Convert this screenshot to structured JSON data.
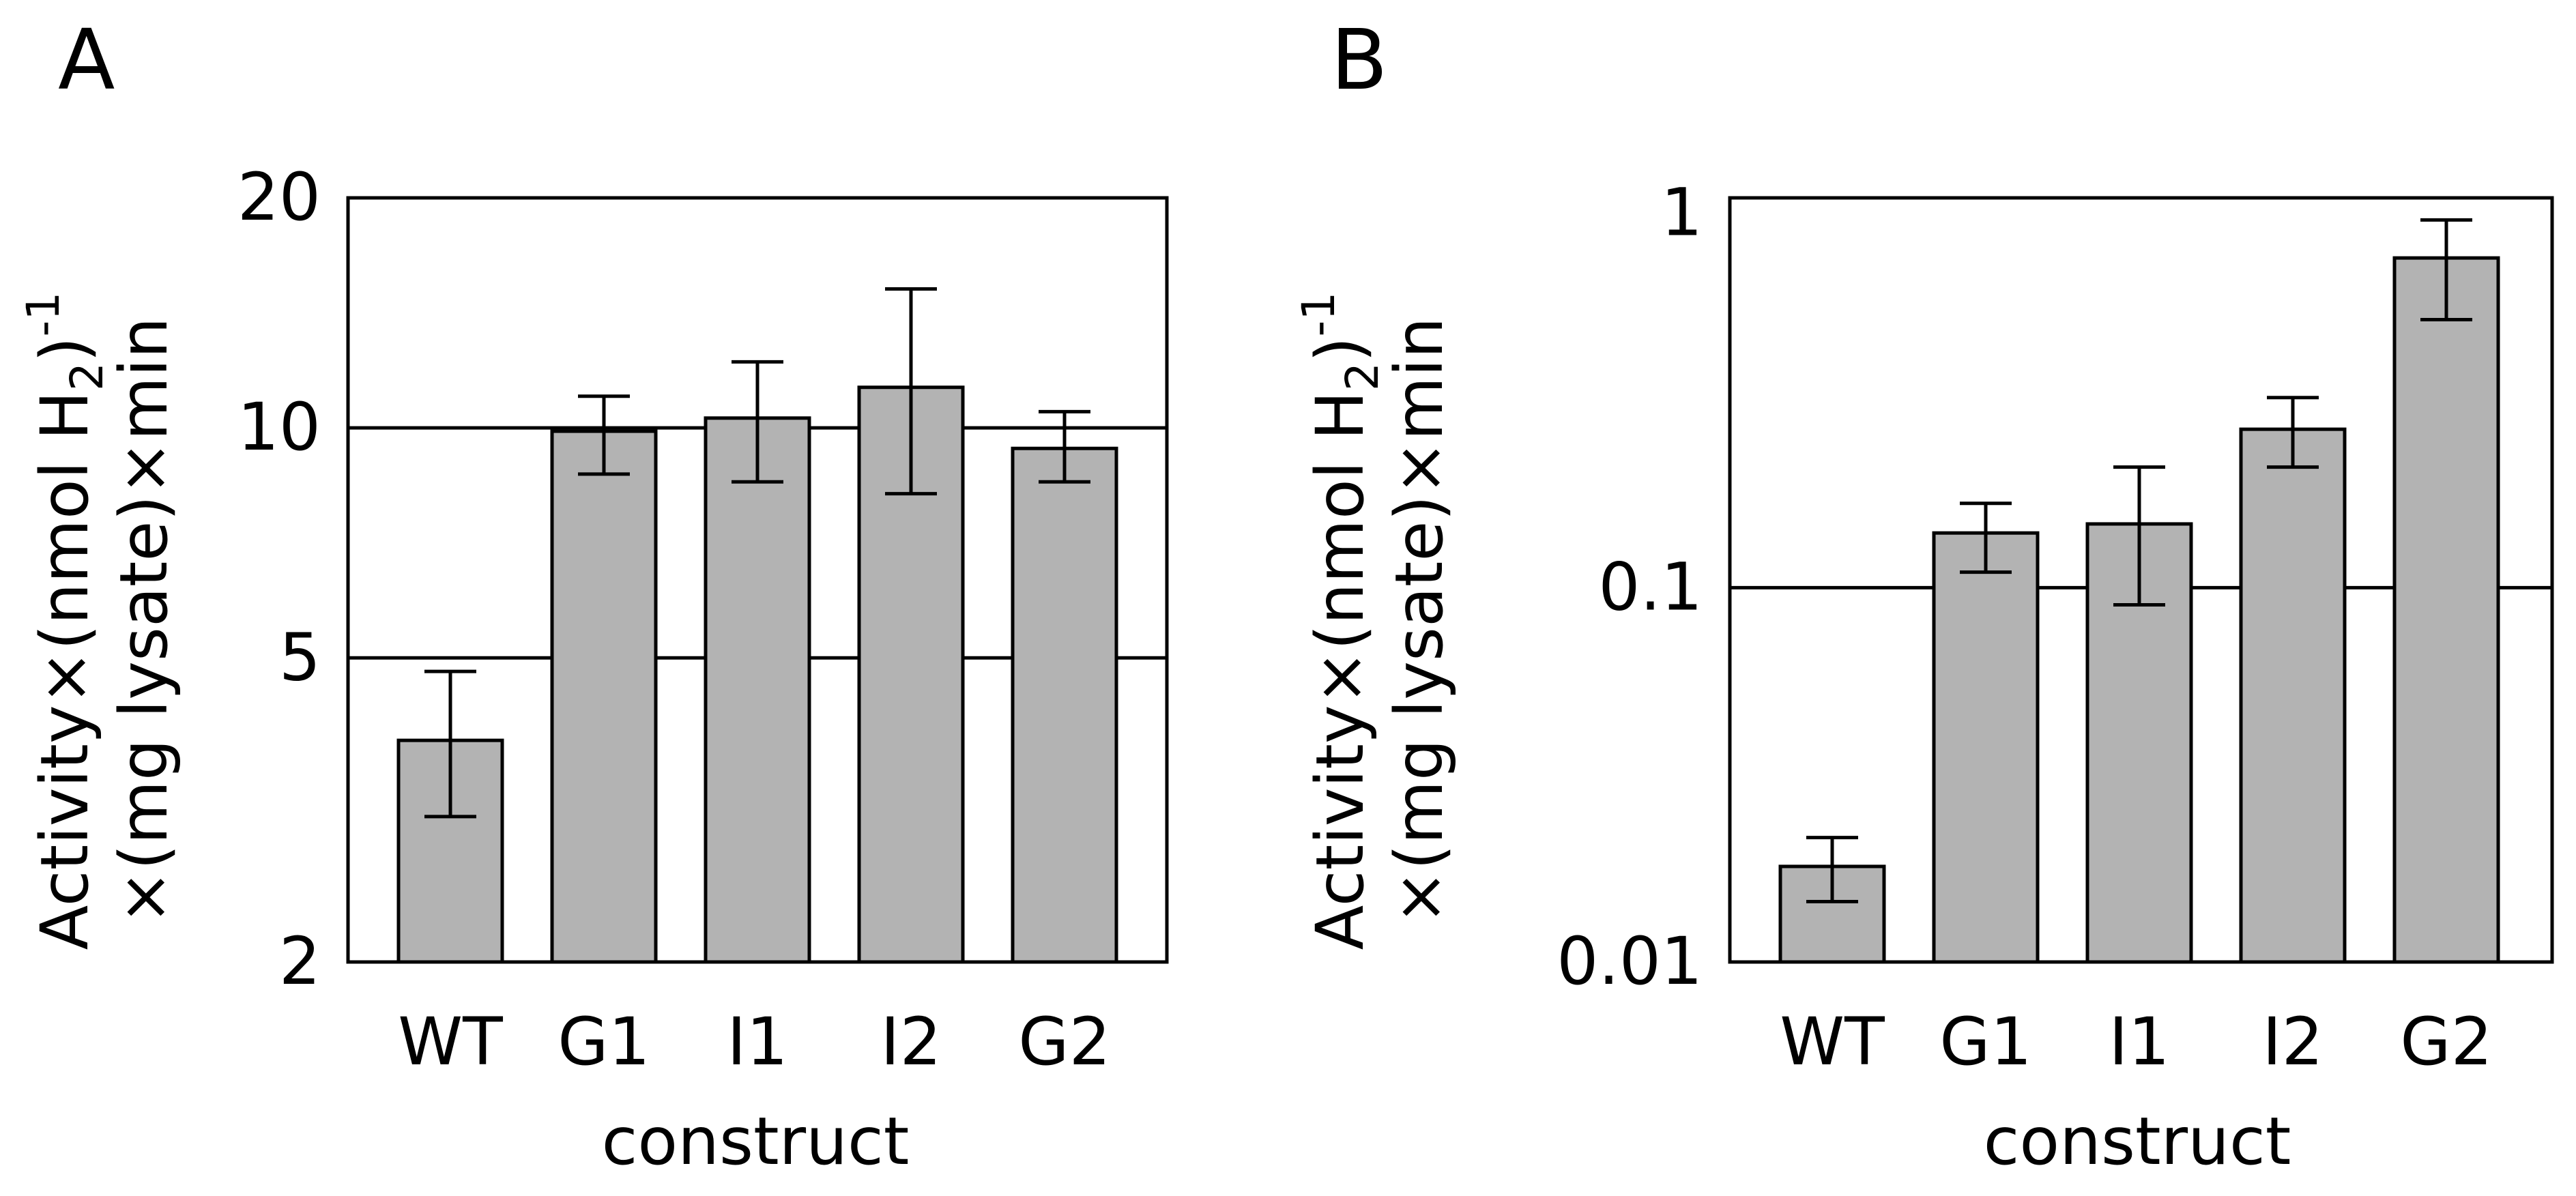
{
  "chart_data": [
    {
      "panel_label": "A",
      "type": "bar",
      "scale": "log",
      "categories": [
        "WT",
        "G1",
        "I1",
        "I2",
        "G2"
      ],
      "values": [
        3.9,
        9.9,
        10.3,
        11.3,
        9.4
      ],
      "error_low": [
        3.1,
        8.7,
        8.5,
        8.2,
        8.5
      ],
      "error_high": [
        4.8,
        11.0,
        12.2,
        15.2,
        10.5
      ],
      "yticks": [
        2,
        5,
        10,
        20
      ],
      "ytick_labels": [
        "2",
        "5",
        "10",
        "20"
      ],
      "gridlines": [
        5,
        10
      ],
      "ylim": [
        2,
        20
      ],
      "xlabel": "construct",
      "ylabel_line1": "Activity×(nmol H",
      "ylabel_line1_sub": "2",
      "ylabel_line1_end": ")",
      "ylabel_line1_sup": "-1",
      "ylabel_line2": "×(mg lysate)×min",
      "bar_color": "#b3b3b3"
    },
    {
      "panel_label": "B",
      "type": "bar",
      "scale": "log",
      "categories": [
        "WT",
        "G1",
        "I1",
        "I2",
        "G2"
      ],
      "values": [
        0.018,
        0.14,
        0.148,
        0.265,
        0.76
      ],
      "error_low": [
        0.0145,
        0.11,
        0.09,
        0.21,
        0.52
      ],
      "error_high": [
        0.0215,
        0.168,
        0.21,
        0.322,
        0.96
      ],
      "yticks": [
        0.01,
        0.1,
        1
      ],
      "ytick_labels": [
        "0.01",
        "0.1",
        "1"
      ],
      "gridlines": [
        0.1
      ],
      "ylim": [
        0.01,
        1.1
      ],
      "xlabel": "construct",
      "ylabel_line1": "Activity×(nmol H",
      "ylabel_line1_sub": "2",
      "ylabel_line1_end": ")",
      "ylabel_line1_sup": "-1",
      "ylabel_line2": "×(mg lysate)×min",
      "bar_color": "#b3b3b3"
    }
  ]
}
